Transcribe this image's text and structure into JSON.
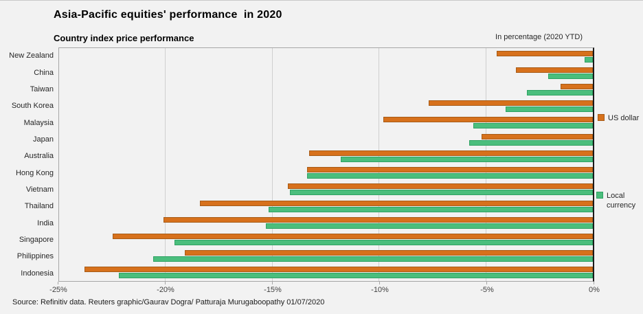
{
  "title": "Asia-Pacific equities' performance  in 2020",
  "subtitle": "Country index price performance",
  "unit_note": "In percentage (2020 YTD)",
  "source": "Source: Refinitiv data. Reuters graphic/Gaurav Dogra/ Patturaja Murugaboopathy 01/07/2020",
  "legend": {
    "us_dollar": "US dollar",
    "local_currency": "Local currency"
  },
  "colors": {
    "background": "#f2f2f2",
    "plot_border": "#a6a6a6",
    "zero_axis": "#1a1a1a",
    "gridline": "#cfcfcf",
    "us_dollar_fill": "#d7711c",
    "us_dollar_border": "#a65b17",
    "local_currency_fill": "#4bbe7d",
    "local_currency_border": "#2fa263",
    "text": "#262626"
  },
  "chart_data": {
    "type": "bar",
    "orientation": "horizontal",
    "title": "Country index price performance",
    "unit": "In percentage (2020 YTD)",
    "xlim": [
      -25,
      0
    ],
    "grid": "vertical",
    "legend_position": "right",
    "categories": [
      "New Zealand",
      "China",
      "Taiwan",
      "South Korea",
      "Malaysia",
      "Japan",
      "Australia",
      "Hong Kong",
      "Vietnam",
      "Thailand",
      "India",
      "Singapore",
      "Philippines",
      "Indonesia"
    ],
    "series": [
      {
        "name": "US dollar",
        "values": [
          -4.5,
          -3.6,
          -1.5,
          -7.7,
          -9.8,
          -5.2,
          -13.3,
          -13.4,
          -14.3,
          -18.4,
          -20.1,
          -22.5,
          -19.1,
          -23.8
        ]
      },
      {
        "name": "Local currency",
        "values": [
          -0.4,
          -2.1,
          -3.1,
          -4.1,
          -5.6,
          -5.8,
          -11.8,
          -13.4,
          -14.2,
          -15.2,
          -15.3,
          -19.6,
          -20.6,
          -22.2
        ]
      }
    ],
    "x_ticks": [
      {
        "label": "-25%",
        "value": -25
      },
      {
        "label": "-20%",
        "value": -20
      },
      {
        "label": "-15%",
        "value": -15
      },
      {
        "label": "-10%",
        "value": -10
      },
      {
        "label": "-5%",
        "value": -5
      },
      {
        "label": "0%",
        "value": 0
      }
    ]
  }
}
